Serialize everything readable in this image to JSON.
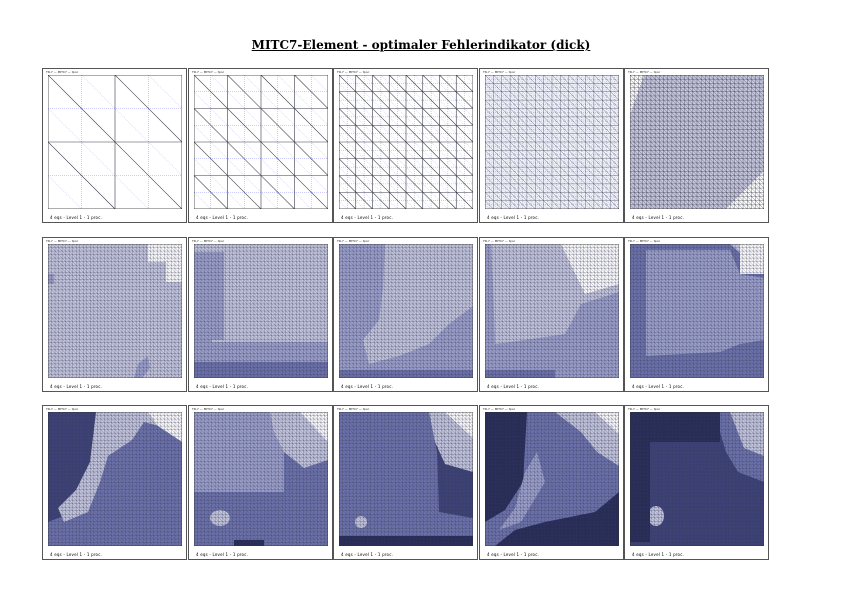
{
  "title": "MITC7-Element - optimaler Fehlerindikator (dick)",
  "colors": {
    "background": "#ffffff",
    "grid_line": "#3a3a4a",
    "blue_line": "#7f7fff",
    "shade_1": "#c6c8df",
    "shade_2": "#9da2cd",
    "shade_3": "#6d74ad",
    "shade_4": "#3d4378",
    "shade_5": "#262c57"
  },
  "panels": [
    {
      "top": "TR-7 — MITC7 — tpoc",
      "caption": "4 eqs - Level 1 - 1 proc.",
      "refinement": 1,
      "shading": "none"
    },
    {
      "top": "TR-7 — MITC7 — tpoc",
      "caption": "4 eqs - Level 1 - 1 proc.",
      "refinement": 2,
      "shading": "none"
    },
    {
      "top": "TR-7 — MITC7 — tpoc",
      "caption": "4 eqs - Level 1 - 1 proc.",
      "refinement": 3,
      "shading": "none"
    },
    {
      "top": "TR-7 — MITC7 — tpoc",
      "caption": "4 eqs - Level 1 - 1 proc.",
      "refinement": 4,
      "shading": "light"
    },
    {
      "top": "TR-7 — MITC7 — tpoc",
      "caption": "4 eqs - Level 1 - 1 proc.",
      "refinement": 5,
      "shading": "octagon"
    },
    {
      "top": "TR-7 — MITC7 — tpoc",
      "caption": "4 eqs - Level 1 - 1 proc.",
      "refinement": 6,
      "shading": "mostly-light"
    },
    {
      "top": "TR-7 — MITC7 — tpoc",
      "caption": "4 eqs - Level 1 - 1 proc.",
      "refinement": 6,
      "shading": "left-band"
    },
    {
      "top": "TR-7 — MITC7 — tpoc",
      "caption": "4 eqs - Level 1 - 1 proc.",
      "refinement": 6,
      "shading": "funnel"
    },
    {
      "top": "TR-7 — MITC7 — tpoc",
      "caption": "4 eqs - Level 1 - 1 proc.",
      "refinement": 6,
      "shading": "corner"
    },
    {
      "top": "TR-7 — MITC7 — tpoc",
      "caption": "4 eqs - Level 1 - 1 proc.",
      "refinement": 6,
      "shading": "frame"
    },
    {
      "top": "TR-7 — MITC7 — tpoc",
      "caption": "4 eqs - Level 1 - 1 proc.",
      "refinement": 6,
      "shading": "funnel-dark"
    },
    {
      "top": "TR-7 — MITC7 — tpoc",
      "caption": "4 eqs - Level 1 - 1 proc.",
      "refinement": 6,
      "shading": "blob"
    },
    {
      "top": "TR-7 — MITC7 — tpoc",
      "caption": "4 eqs - Level 1 - 1 proc.",
      "refinement": 6,
      "shading": "blob-darker"
    },
    {
      "top": "TR-7 — MITC7 — tpoc",
      "caption": "4 eqs - Level 1 - 1 proc.",
      "refinement": 6,
      "shading": "dark-funnel"
    },
    {
      "top": "TR-7 — MITC7 — tpoc",
      "caption": "4 eqs - Level 1 - 1 proc.",
      "refinement": 6,
      "shading": "darkest"
    }
  ]
}
